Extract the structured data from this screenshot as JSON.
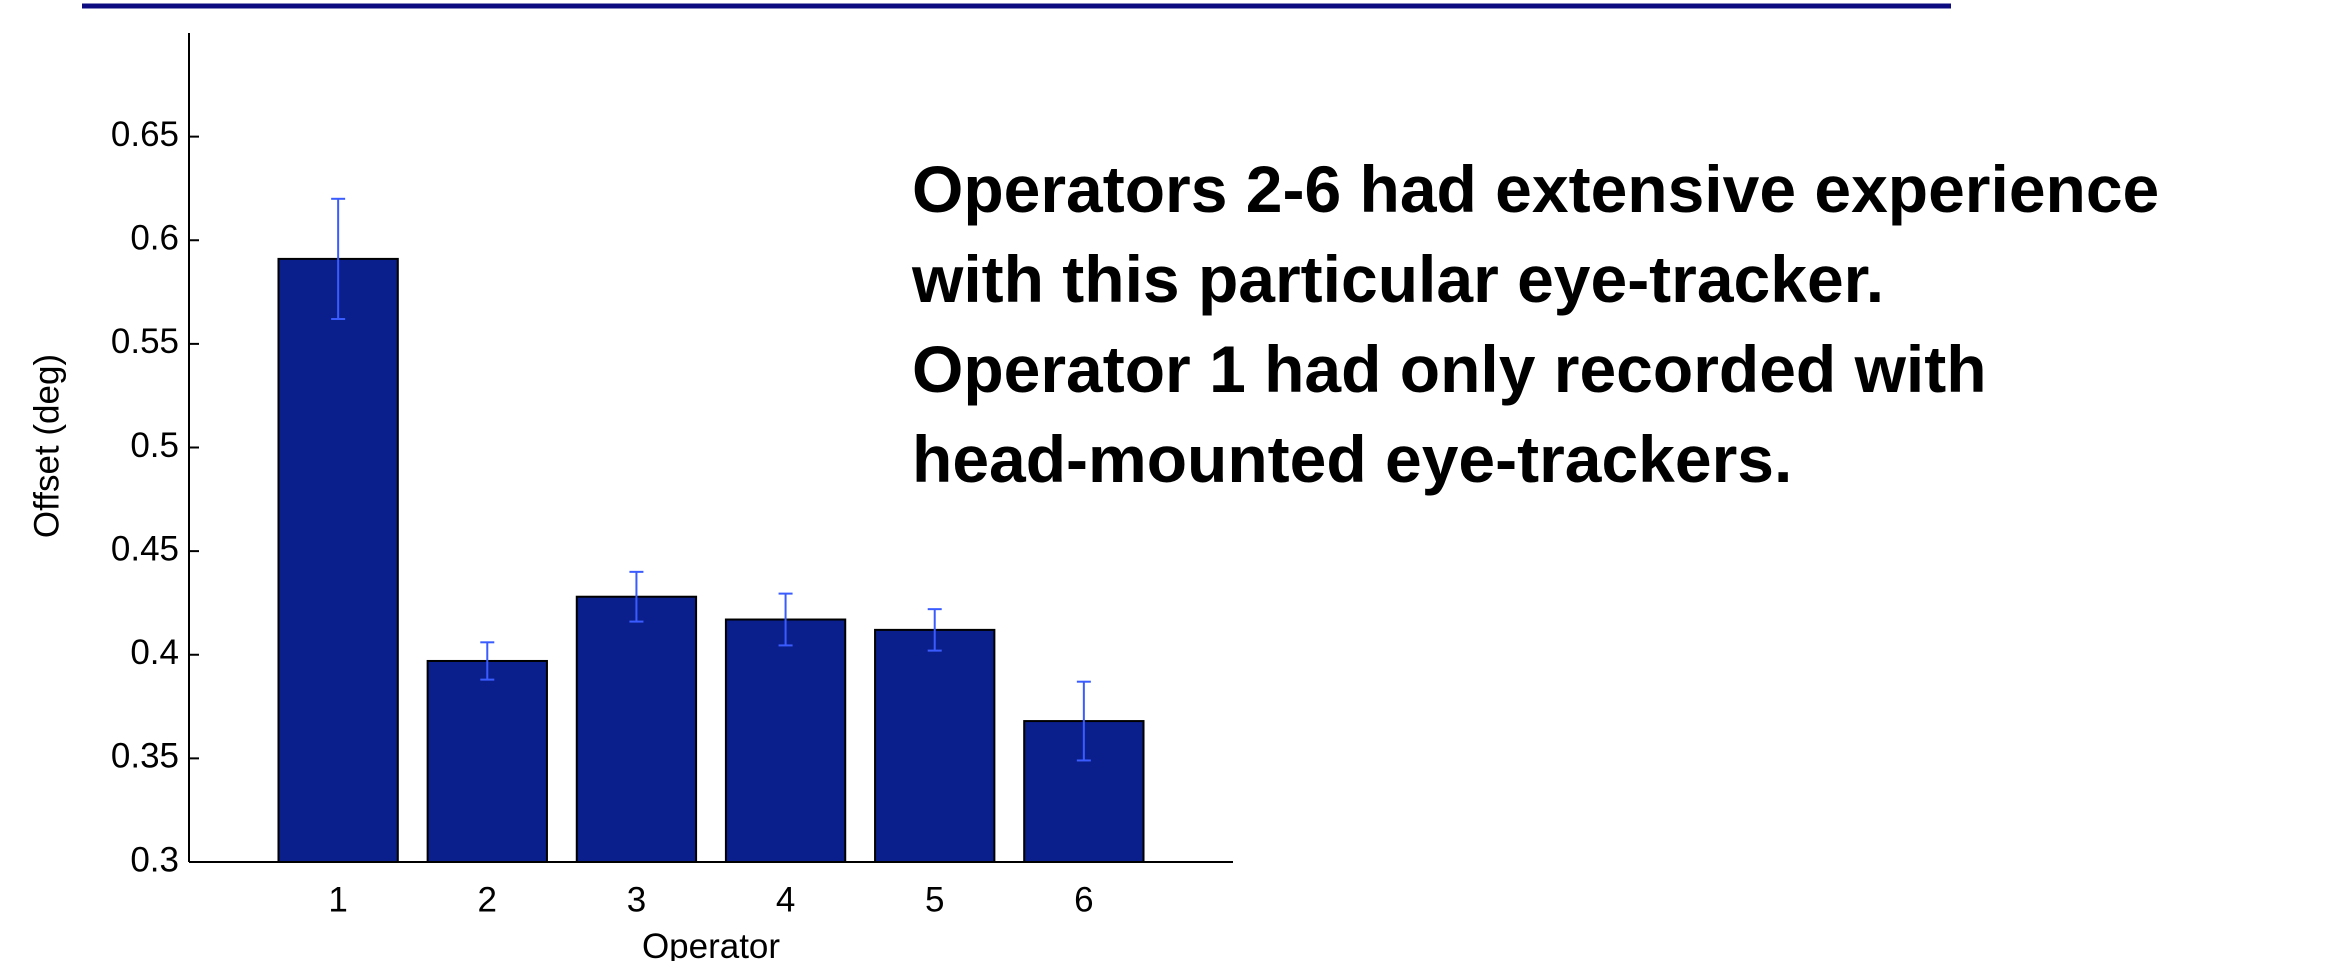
{
  "chart_data": {
    "type": "bar",
    "categories": [
      "1",
      "2",
      "3",
      "4",
      "5",
      "6"
    ],
    "values": [
      0.591,
      0.397,
      0.428,
      0.417,
      0.412,
      0.368
    ],
    "errors": [
      0.029,
      0.009,
      0.012,
      0.0125,
      0.01,
      0.019
    ],
    "color": "#0b1f8c",
    "error_color": "#3a5cff",
    "ylim": [
      0.3,
      0.7
    ],
    "yticks": [
      0.3,
      0.35,
      0.4,
      0.45,
      0.5,
      0.55,
      0.6,
      0.65
    ],
    "x_label": "Operator",
    "y_label": "Offset (deg)",
    "grid": false,
    "annotation": [
      "Operators 2-6 had extensive experience",
      "with this particular eye-tracker.",
      "Operator 1 had only recorded with",
      "head-mounted eye-trackers."
    ],
    "annotation_color": "#0c0c80"
  }
}
